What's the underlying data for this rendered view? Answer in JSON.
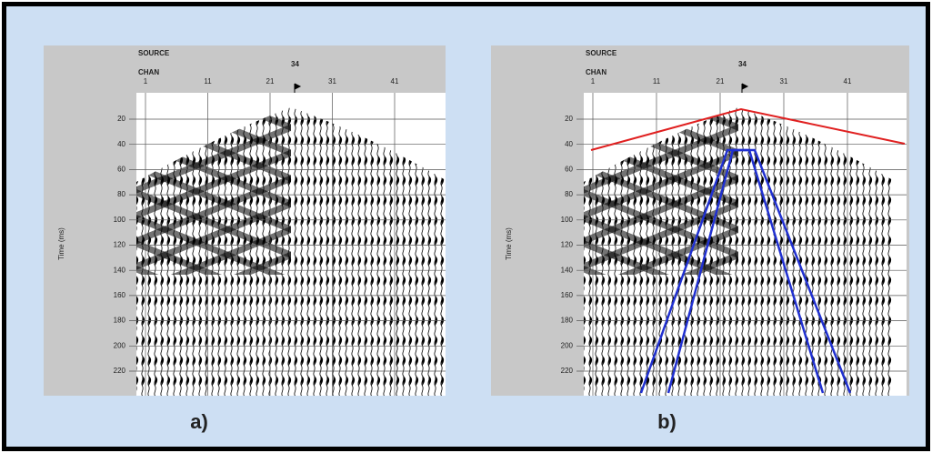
{
  "panels": [
    {
      "label": "a)",
      "header": {
        "source": "SOURCE",
        "source_value": "34",
        "chan": "CHAN",
        "chan_ticks": [
          "1",
          "11",
          "21",
          "31",
          "41"
        ]
      },
      "y_axis_label": "Time (ms)",
      "y_ticks": [
        "20",
        "40",
        "60",
        "80",
        "100",
        "120",
        "140",
        "160",
        "180",
        "200",
        "220"
      ]
    },
    {
      "label": "b)",
      "header": {
        "source": "SOURCE",
        "source_value": "34",
        "chan": "CHAN",
        "chan_ticks": [
          "1",
          "11",
          "21",
          "31",
          "41"
        ]
      },
      "y_axis_label": "Time (ms)",
      "y_ticks": [
        "20",
        "40",
        "60",
        "80",
        "100",
        "120",
        "140",
        "160",
        "180",
        "200",
        "220"
      ]
    }
  ]
}
